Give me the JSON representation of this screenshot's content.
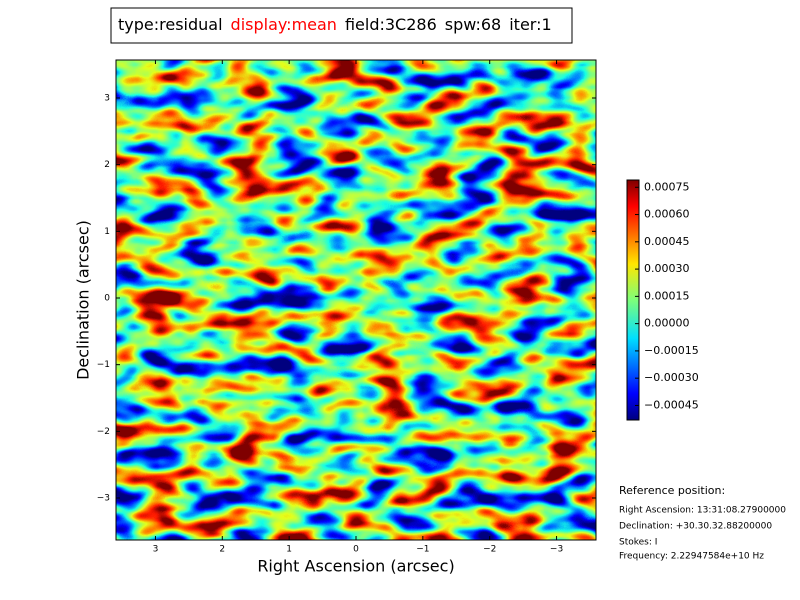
{
  "chart_data": {
    "type": "image",
    "title_parts": [
      {
        "text": "type:residual",
        "color": "#000000"
      },
      {
        "text": "display:mean",
        "color": "#ff0000"
      },
      {
        "text": "field:3C286",
        "color": "#000000"
      },
      {
        "text": "spw:68",
        "color": "#000000"
      },
      {
        "text": "iter:1",
        "color": "#000000"
      }
    ],
    "xlabel": "Right Ascension (arcsec)",
    "ylabel": "Declination (arcsec)",
    "xlim": [
      3.59,
      -3.59
    ],
    "xticks": [
      3,
      2,
      1,
      0,
      {
        "value": -1,
        "label": "−1"
      },
      {
        "value": -2,
        "label": "−2"
      },
      {
        "value": -3,
        "label": "−3"
      }
    ],
    "ylim": [
      -3.63,
      3.57
    ],
    "yticks": [
      {
        "value": -3,
        "label": "−3"
      },
      {
        "value": -2,
        "label": "−2"
      },
      {
        "value": -1,
        "label": "−1"
      },
      0,
      1,
      2,
      3
    ],
    "colormap": "jet",
    "clim": [
      -0.00053,
      0.00079
    ],
    "cticks": [
      {
        "value": -0.00045,
        "label": "−0.00045"
      },
      {
        "value": -0.0003,
        "label": "−0.00030"
      },
      {
        "value": -0.00015,
        "label": "−0.00015"
      },
      {
        "value": 0,
        "label": "0.00000"
      },
      {
        "value": 0.00015,
        "label": "0.00015"
      },
      {
        "value": 0.0003,
        "label": "0.00030"
      },
      {
        "value": 0.00045,
        "label": "0.00045"
      },
      {
        "value": 0.0006,
        "label": "0.00060"
      },
      {
        "value": 0.00075,
        "label": "0.00075"
      }
    ],
    "reference": {
      "title": "Reference position:",
      "lines": [
        "Right Ascension: 13:31:08.27900000",
        "Declination: +30.30.32.88200000",
        "Stokes: I",
        "Frequency: 2.22947584e+10 Hz"
      ]
    }
  }
}
